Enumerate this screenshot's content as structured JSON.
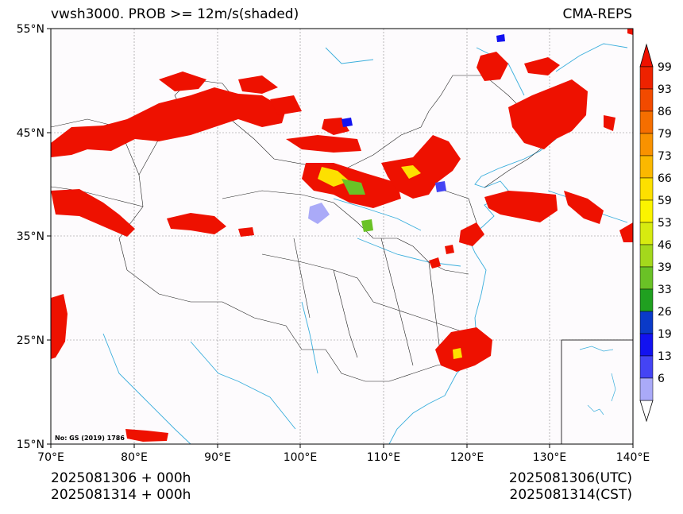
{
  "title": {
    "left": "vwsh3000. PROB >= 12m/s(shaded)",
    "right": "CMA-REPS"
  },
  "axes": {
    "lat_labels": [
      "55°N",
      "45°N",
      "35°N",
      "25°N",
      "15°N"
    ],
    "lon_labels": [
      "70°E",
      "80°E",
      "90°E",
      "100°E",
      "110°E",
      "120°E",
      "130°E",
      "140°E"
    ]
  },
  "colorbar": {
    "levels": [
      "99",
      "93",
      "86",
      "79",
      "73",
      "66",
      "59",
      "53",
      "46",
      "39",
      "33",
      "26",
      "19",
      "13",
      "6"
    ],
    "colors": [
      "#ee2200",
      "#f24a00",
      "#f56e00",
      "#f99200",
      "#fbb800",
      "#fde000",
      "#fbf400",
      "#d7eb10",
      "#a4d81c",
      "#6ac226",
      "#20a020",
      "#0a3ac8",
      "#1212f0",
      "#4444f4",
      "#aaaaf8"
    ]
  },
  "note": "No: GS (2019) 1786",
  "footer": {
    "left_line1": "2025081306  +  000h",
    "left_line2": "2025081314  +  000h",
    "right_line1": "2025081306(UTC)",
    "right_line2": "2025081314(CST)"
  },
  "colors": {
    "shade_high": "#ee1100",
    "coast": "#3aaedc",
    "border": "#222222",
    "grid": "#888888"
  }
}
